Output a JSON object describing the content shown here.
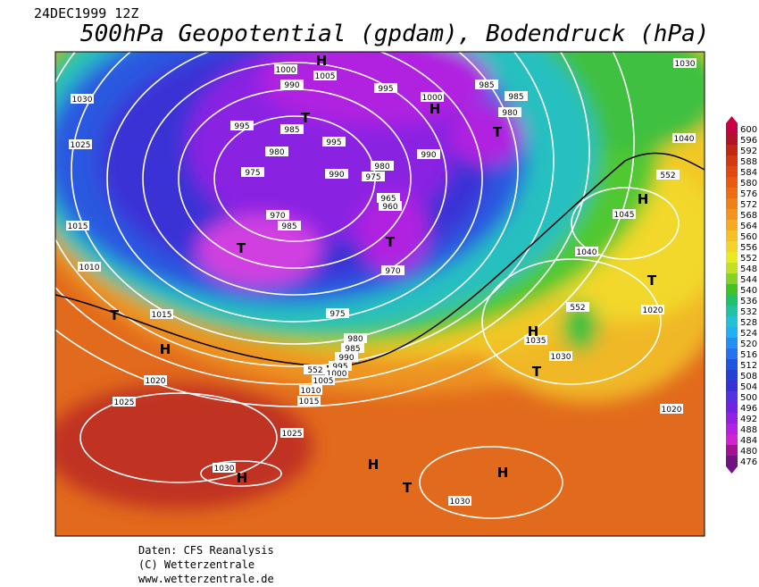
{
  "header": {
    "date": "24DEC1999 12Z",
    "title": "500hPa Geopotential (gpdam), Bodendruck (hPa)"
  },
  "contour_labels": [
    "1030",
    "1025",
    "1015",
    "1010",
    "1015",
    "1020",
    "1025",
    "1025",
    "1030",
    "1030",
    "1030",
    "1040",
    "1045",
    "1040",
    "1035",
    "1030",
    "1020",
    "1020",
    "1000",
    "1005",
    "990",
    "995",
    "985",
    "995",
    "980",
    "975",
    "990",
    "995",
    "1000",
    "985",
    "985",
    "980",
    "990",
    "980",
    "975",
    "965",
    "960",
    "970",
    "985",
    "970",
    "975",
    "980",
    "985",
    "990",
    "995",
    "1000",
    "1005",
    "1010",
    "1015",
    "552",
    "552",
    "552"
  ],
  "markers": [
    "H",
    "T",
    "H",
    "T",
    "T",
    "T",
    "H",
    "T",
    "H",
    "H",
    "T",
    "T",
    "H",
    "T",
    "H",
    "H"
  ],
  "legend": {
    "levels": [
      600,
      596,
      592,
      588,
      584,
      580,
      576,
      572,
      568,
      564,
      560,
      556,
      552,
      548,
      544,
      540,
      536,
      532,
      528,
      524,
      520,
      516,
      512,
      508,
      504,
      500,
      496,
      492,
      488,
      484,
      480,
      476
    ],
    "colors": [
      "#c80046",
      "#b01428",
      "#c42814",
      "#d23812",
      "#e04810",
      "#e85a10",
      "#f06c12",
      "#f28018",
      "#f49420",
      "#f4aa22",
      "#f4c024",
      "#f4d42c",
      "#eaea22",
      "#c4e024",
      "#86d224",
      "#44c224",
      "#22c264",
      "#22c2a2",
      "#22c2d4",
      "#22b0f2",
      "#2290f2",
      "#2272f2",
      "#2254e2",
      "#2442d2",
      "#3432d4",
      "#5232e2",
      "#7222e2",
      "#9222e2",
      "#b222e0",
      "#d222d2",
      "#a21292",
      "#721282"
    ]
  },
  "footer": {
    "line1": "Daten: CFS Reanalysis",
    "line2": "(C) Wetterzentrale",
    "line3": "www.wetterzentrale.de"
  }
}
